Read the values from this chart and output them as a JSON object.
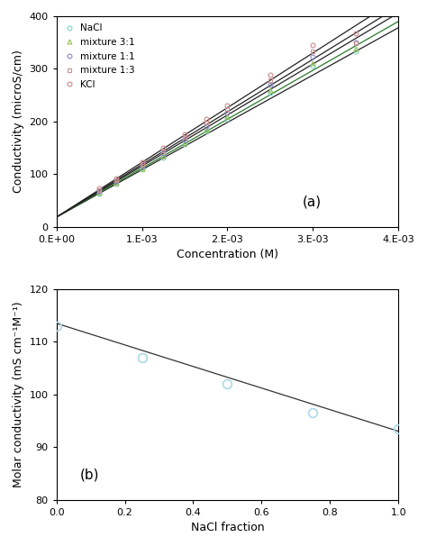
{
  "panel_a": {
    "title": "(a)",
    "xlabel": "Concentration (M)",
    "ylabel": "Conductivity (microS/cm)",
    "xlim": [
      0,
      0.004
    ],
    "ylim": [
      0,
      400
    ],
    "xtick_labels": [
      "0.E+00",
      "1.E-03",
      "2.E-03",
      "3.E-03",
      "4.E-03"
    ],
    "yticks": [
      0,
      100,
      200,
      300,
      400
    ],
    "names": [
      "NaCl",
      "mixture 3:1",
      "mixture 1:1",
      "mixture 1:3",
      "KCl"
    ],
    "markers": [
      "o",
      "^",
      "o",
      "s",
      "o"
    ],
    "marker_colors": [
      "#80d0cc",
      "#90c050",
      "#8888cc",
      "#cc9090",
      "#cc8888"
    ],
    "line_colors": [
      "#222222",
      "#2a7a2a",
      "#222222",
      "#222222",
      "#222222"
    ],
    "slopes": [
      90000,
      93000,
      97000,
      100000,
      104000
    ],
    "intercepts": [
      18,
      18,
      18,
      18,
      18
    ],
    "x_pts": [
      0.0005,
      0.0007,
      0.001,
      0.00125,
      0.0015,
      0.00175,
      0.002,
      0.0025,
      0.003,
      0.0035
    ],
    "y_data": [
      [
        63,
        81,
        108,
        131,
        156,
        181,
        205,
        255,
        306,
        333
      ],
      [
        65,
        83,
        111,
        134,
        159,
        184,
        209,
        260,
        311,
        338
      ],
      [
        68,
        86,
        115,
        139,
        165,
        191,
        216,
        269,
        322,
        350
      ],
      [
        70,
        89,
        119,
        144,
        170,
        197,
        224,
        278,
        333,
        348
      ],
      [
        73,
        92,
        123,
        149,
        176,
        204,
        231,
        288,
        345,
        368
      ]
    ]
  },
  "panel_b": {
    "title": "(b)",
    "xlabel": "NaCl fraction",
    "ylabel": "Molar conductivity (mS cm⁻¹M⁻¹)",
    "xlim": [
      0,
      1
    ],
    "ylim": [
      80,
      120
    ],
    "xticks": [
      0,
      0.2,
      0.4,
      0.6,
      0.8,
      1.0
    ],
    "yticks": [
      80,
      90,
      100,
      110,
      120
    ],
    "points_x": [
      0.0,
      0.25,
      0.5,
      0.75,
      1.0
    ],
    "points_y": [
      113.0,
      107.0,
      102.0,
      96.5,
      93.5
    ],
    "fit_slope": -20.5,
    "fit_intercept": 113.5,
    "point_color": "#add8e6",
    "line_color": "#333333"
  },
  "fig_bg": "#ffffff",
  "axes_bg": "#ffffff"
}
